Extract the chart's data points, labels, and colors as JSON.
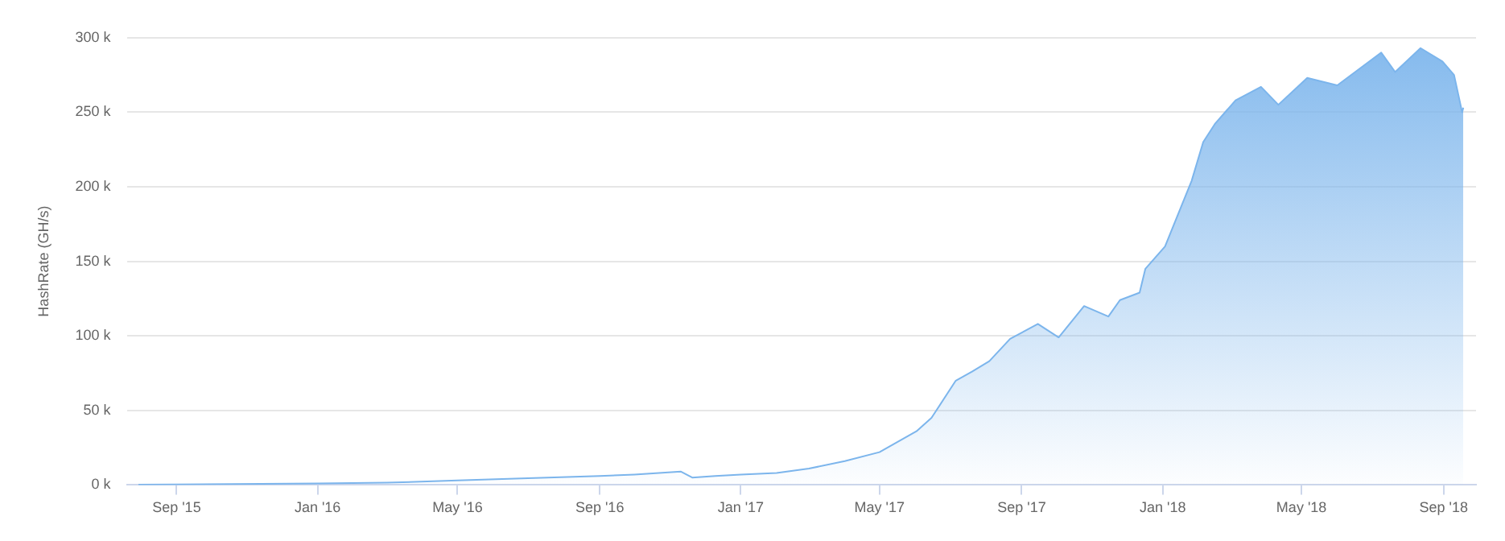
{
  "chart_data": {
    "type": "area",
    "ylabel": "HashRate (GH/s)",
    "x": [
      "2015-07-30",
      "2015-09-01",
      "2016-01-01",
      "2016-03-01",
      "2016-05-01",
      "2016-07-01",
      "2016-09-01",
      "2016-10-01",
      "2016-11-10",
      "2016-11-20",
      "2016-12-10",
      "2017-01-01",
      "2017-02-01",
      "2017-03-01",
      "2017-04-01",
      "2017-05-01",
      "2017-06-02",
      "2017-06-15",
      "2017-07-06",
      "2017-07-20",
      "2017-08-04",
      "2017-08-22",
      "2017-09-15",
      "2017-10-03",
      "2017-10-25",
      "2017-11-15",
      "2017-11-25",
      "2017-12-12",
      "2017-12-17",
      "2018-01-03",
      "2018-01-26",
      "2018-02-05",
      "2018-02-15",
      "2018-03-05",
      "2018-03-27",
      "2018-04-11",
      "2018-05-06",
      "2018-06-01",
      "2018-07-09",
      "2018-07-21",
      "2018-08-12",
      "2018-08-31",
      "2018-09-10",
      "2018-09-17",
      "2018-09-18"
    ],
    "series": [
      {
        "color": "#7cb5ec",
        "values": [
          0.2,
          0.3,
          1,
          1.5,
          3,
          4.5,
          6,
          7,
          9,
          5,
          6,
          7,
          8,
          11,
          16,
          22,
          36,
          45,
          70,
          76,
          83,
          98,
          108,
          99,
          120,
          113,
          124,
          129,
          145,
          160,
          204,
          230,
          242,
          258,
          267,
          255,
          273,
          268,
          290,
          277,
          293,
          284,
          275,
          250,
          253
        ]
      }
    ],
    "xlim": [
      "2015-07-20",
      "2018-09-29"
    ],
    "xticks": [
      {
        "value": "2015-09-01",
        "label": "Sep '15"
      },
      {
        "value": "2016-01-01",
        "label": "Jan '16"
      },
      {
        "value": "2016-05-01",
        "label": "May '16"
      },
      {
        "value": "2016-09-01",
        "label": "Sep '16"
      },
      {
        "value": "2017-01-01",
        "label": "Jan '17"
      },
      {
        "value": "2017-05-01",
        "label": "May '17"
      },
      {
        "value": "2017-09-01",
        "label": "Sep '17"
      },
      {
        "value": "2018-01-01",
        "label": "Jan '18"
      },
      {
        "value": "2018-05-01",
        "label": "May '18"
      },
      {
        "value": "2018-09-01",
        "label": "Sep '18"
      }
    ],
    "ylim": [
      0,
      300
    ],
    "yticks": [
      {
        "value": 0,
        "label": "0 k"
      },
      {
        "value": 50,
        "label": "50 k"
      },
      {
        "value": 100,
        "label": "100 k"
      },
      {
        "value": 150,
        "label": "150 k"
      },
      {
        "value": 200,
        "label": "200 k"
      },
      {
        "value": 250,
        "label": "250 k"
      },
      {
        "value": 300,
        "label": "300 k"
      }
    ],
    "grid": "y",
    "legend": false,
    "marker": "none",
    "line_style": "solid"
  }
}
